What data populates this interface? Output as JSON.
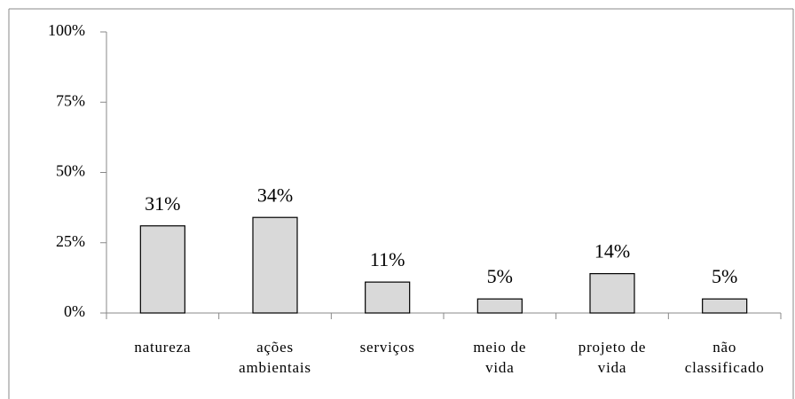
{
  "chart_data": {
    "type": "bar",
    "categories": [
      "natureza",
      "ações\nambientais",
      "serviços",
      "meio de\nvida",
      "projeto de\nvida",
      "não\nclassificado"
    ],
    "values": [
      31,
      34,
      11,
      5,
      14,
      5
    ],
    "value_labels": [
      "31%",
      "34%",
      "11%",
      "5%",
      "14%",
      "5%"
    ],
    "color": "#d9d9d9",
    "ylim": [
      0,
      100
    ],
    "yticks": [
      {
        "value": 0,
        "label": "0%"
      },
      {
        "value": 25,
        "label": "25%"
      },
      {
        "value": 50,
        "label": "50%"
      },
      {
        "value": 75,
        "label": "75%"
      },
      {
        "value": 100,
        "label": "100%"
      }
    ],
    "grid": false
  }
}
